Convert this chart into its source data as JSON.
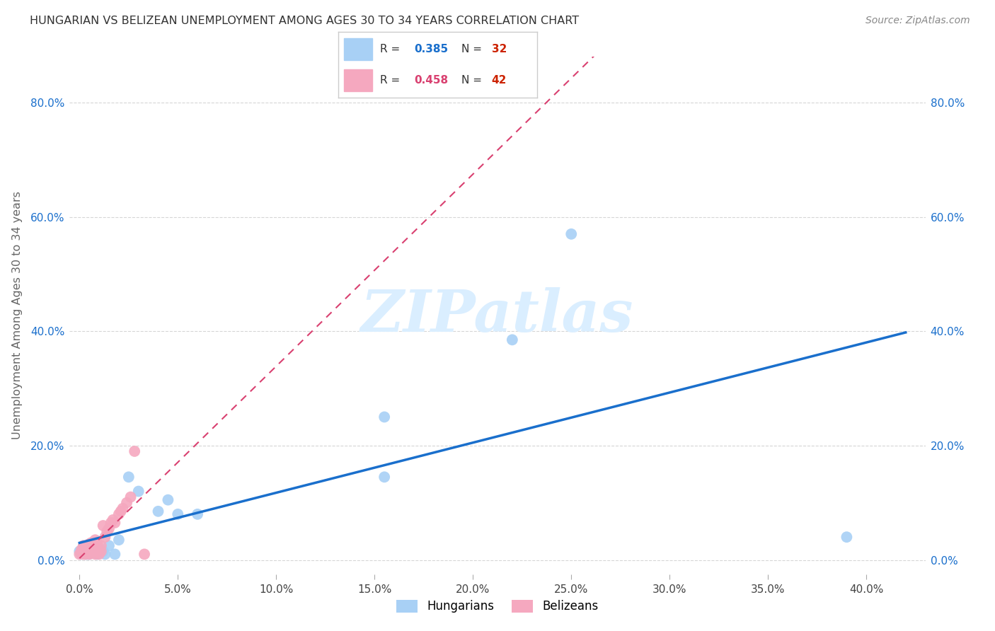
{
  "title": "HUNGARIAN VS BELIZEAN UNEMPLOYMENT AMONG AGES 30 TO 34 YEARS CORRELATION CHART",
  "source": "Source: ZipAtlas.com",
  "ylabel": "Unemployment Among Ages 30 to 34 years",
  "xlim": [
    -0.005,
    0.43
  ],
  "ylim": [
    -0.025,
    0.88
  ],
  "xticks": [
    0.0,
    0.05,
    0.1,
    0.15,
    0.2,
    0.25,
    0.3,
    0.35,
    0.4
  ],
  "yticks": [
    0.0,
    0.2,
    0.4,
    0.6,
    0.8
  ],
  "hungarian_R": "0.385",
  "hungarian_N": "32",
  "belizean_R": "0.458",
  "belizean_N": "42",
  "hungarian_color": "#a8d0f5",
  "belizean_color": "#f5a8bf",
  "hungarian_line_color": "#1a6fcc",
  "belizean_line_color": "#d94070",
  "background_color": "#ffffff",
  "watermark": "ZIPatlas",
  "watermark_color": "#daeeff",
  "tick_color_blue": "#1a6fcc",
  "tick_color_red": "#cc2200",
  "hungarian_x": [
    0.0,
    0.001,
    0.002,
    0.002,
    0.003,
    0.003,
    0.003,
    0.004,
    0.004,
    0.005,
    0.005,
    0.006,
    0.007,
    0.008,
    0.009,
    0.01,
    0.012,
    0.013,
    0.015,
    0.018,
    0.02,
    0.025,
    0.03,
    0.04,
    0.045,
    0.05,
    0.06,
    0.155,
    0.155,
    0.22,
    0.25,
    0.39
  ],
  "hungarian_y": [
    0.015,
    0.01,
    0.012,
    0.02,
    0.01,
    0.015,
    0.02,
    0.01,
    0.018,
    0.01,
    0.015,
    0.012,
    0.02,
    0.015,
    0.01,
    0.02,
    0.015,
    0.01,
    0.025,
    0.01,
    0.035,
    0.145,
    0.12,
    0.085,
    0.105,
    0.08,
    0.08,
    0.25,
    0.145,
    0.385,
    0.57,
    0.04
  ],
  "belizean_x": [
    0.0,
    0.001,
    0.001,
    0.002,
    0.002,
    0.002,
    0.003,
    0.003,
    0.003,
    0.004,
    0.004,
    0.005,
    0.005,
    0.005,
    0.006,
    0.006,
    0.006,
    0.007,
    0.007,
    0.008,
    0.008,
    0.008,
    0.009,
    0.009,
    0.01,
    0.01,
    0.011,
    0.011,
    0.012,
    0.013,
    0.014,
    0.015,
    0.016,
    0.017,
    0.018,
    0.02,
    0.021,
    0.022,
    0.024,
    0.026,
    0.028,
    0.033
  ],
  "belizean_y": [
    0.01,
    0.012,
    0.018,
    0.01,
    0.02,
    0.025,
    0.01,
    0.015,
    0.022,
    0.012,
    0.02,
    0.01,
    0.018,
    0.028,
    0.012,
    0.02,
    0.03,
    0.015,
    0.025,
    0.01,
    0.02,
    0.035,
    0.015,
    0.03,
    0.01,
    0.02,
    0.015,
    0.025,
    0.06,
    0.04,
    0.05,
    0.055,
    0.065,
    0.07,
    0.065,
    0.08,
    0.085,
    0.09,
    0.1,
    0.11,
    0.19,
    0.01
  ]
}
